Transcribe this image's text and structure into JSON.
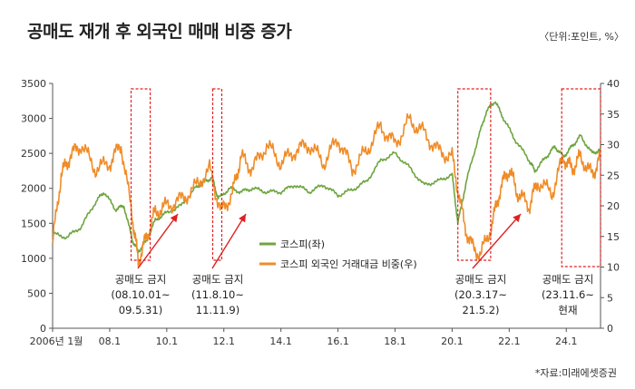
{
  "header": {
    "title": "공매도 재개 후 외국인 매매 비중 증가",
    "unit": "〈단위:포인트, %〉"
  },
  "footer": {
    "source": "*자료:미래에셋증권"
  },
  "colors": {
    "kospi": "#6ea540",
    "foreign": "#f08c28",
    "highlight": "#e02020",
    "axis": "#555555"
  },
  "chart_data": {
    "type": "line",
    "x_ticks": [
      "2006년 1월",
      "08.1",
      "10.1",
      "12.1",
      "14.1",
      "16.1",
      "18.1",
      "20.1",
      "22.1",
      "24.1"
    ],
    "x_tick_years": [
      2006,
      2008,
      2010,
      2012,
      2014,
      2016,
      2018,
      2020,
      2022,
      2024
    ],
    "xlim": [
      2006.0,
      2025.2
    ],
    "y_left": {
      "ticks": [
        "0",
        "500",
        "1000",
        "1500",
        "2000",
        "2500",
        "3000",
        "3500"
      ],
      "lim": [
        0,
        3500
      ]
    },
    "y_right": {
      "ticks": [
        "0",
        "5",
        "10",
        "15",
        "20",
        "25",
        "30",
        "35",
        "40"
      ],
      "lim": [
        0,
        40
      ]
    },
    "series": [
      {
        "name": "코스피(좌)",
        "axis": "left",
        "x": [
          2006.0,
          2006.5,
          2007.0,
          2007.5,
          2007.8,
          2008.2,
          2008.5,
          2008.8,
          2009.0,
          2009.3,
          2009.6,
          2010.0,
          2010.5,
          2011.0,
          2011.3,
          2011.6,
          2011.8,
          2012.2,
          2012.6,
          2013.0,
          2013.5,
          2014.0,
          2014.5,
          2015.0,
          2015.5,
          2016.0,
          2016.5,
          2017.0,
          2017.5,
          2018.0,
          2018.5,
          2019.0,
          2019.5,
          2020.0,
          2020.2,
          2020.5,
          2020.9,
          2021.2,
          2021.5,
          2021.8,
          2022.2,
          2022.7,
          2022.9,
          2023.3,
          2023.6,
          2023.9,
          2024.2,
          2024.5,
          2024.9,
          2025.2
        ],
        "y": [
          1350,
          1300,
          1450,
          1800,
          1950,
          1700,
          1750,
          1250,
          1100,
          1250,
          1550,
          1650,
          1750,
          2000,
          2100,
          2150,
          1850,
          2000,
          1950,
          2000,
          1950,
          1950,
          2050,
          1950,
          2050,
          1900,
          1980,
          2100,
          2400,
          2500,
          2300,
          2050,
          2100,
          2200,
          1500,
          2100,
          2700,
          3100,
          3250,
          3000,
          2700,
          2400,
          2250,
          2450,
          2600,
          2450,
          2600,
          2750,
          2500,
          2550
        ]
      },
      {
        "name": "코스피 외국인 거래대금 비중(우)",
        "axis": "right",
        "x": [
          2006.0,
          2006.3,
          2006.6,
          2007.0,
          2007.5,
          2008.0,
          2008.4,
          2008.8,
          2009.0,
          2009.3,
          2009.6,
          2010.0,
          2010.5,
          2011.0,
          2011.5,
          2011.9,
          2012.3,
          2012.6,
          2013.0,
          2013.5,
          2014.0,
          2014.5,
          2015.0,
          2015.5,
          2016.0,
          2016.5,
          2017.0,
          2017.5,
          2018.0,
          2018.5,
          2019.0,
          2019.5,
          2020.0,
          2020.3,
          2020.6,
          2021.0,
          2021.4,
          2021.7,
          2022.0,
          2022.3,
          2022.7,
          2023.0,
          2023.5,
          2023.9,
          2024.2,
          2024.5,
          2024.9,
          2025.2
        ],
        "y": [
          14,
          25,
          28,
          30,
          26,
          27,
          30,
          18,
          11,
          15,
          19,
          20,
          21,
          23,
          26,
          19,
          22,
          28,
          26,
          30,
          27,
          29,
          30,
          27,
          31,
          26,
          29,
          33,
          30,
          34,
          32,
          29,
          28,
          20,
          14,
          12,
          17,
          23,
          26,
          22,
          20,
          24,
          22,
          28,
          26,
          28,
          25,
          28
        ]
      }
    ],
    "annotations": [
      {
        "period": "공매도 금지",
        "dates": "(08.10.01~",
        "dates2": "09.5.31)",
        "start": 2008.75,
        "end": 2009.42
      },
      {
        "period": "공매도 금지",
        "dates": "(11.8.10~",
        "dates2": "11.11.9)",
        "start": 2011.61,
        "end": 2011.86
      },
      {
        "period": "공매도 금지",
        "dates": "(20.3.17~",
        "dates2": "21.5.2)",
        "start": 2020.2,
        "end": 2021.35
      },
      {
        "period": "공매도 금지",
        "dates": "(23.11.6~",
        "dates2": "현재",
        "start": 2023.84,
        "end": 2025.2
      }
    ]
  }
}
